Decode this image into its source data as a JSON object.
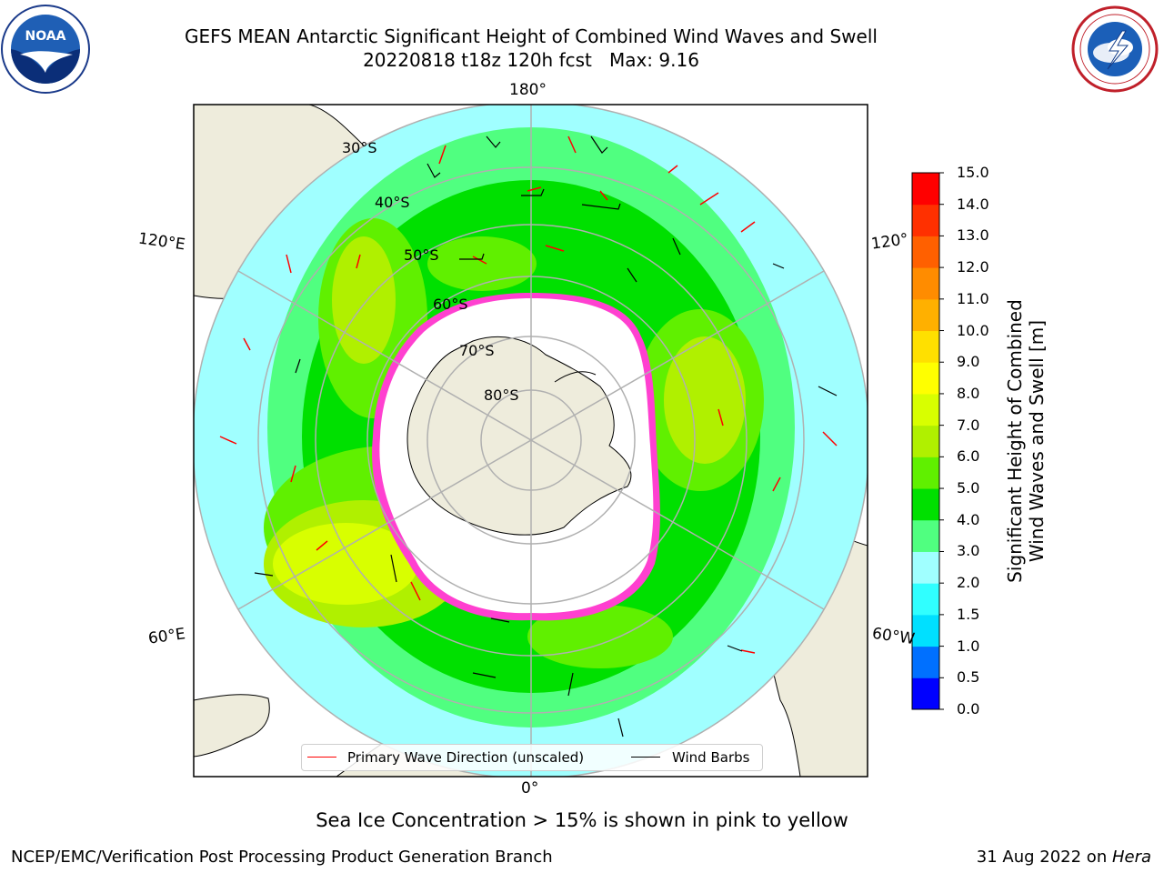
{
  "header": {
    "title_line1": "GEFS MEAN Antarctic Significant Height of Combined Wind Waves and Swell",
    "title_line2": "20220818 t18z 120h fcst   Max: 9.16"
  },
  "logos": {
    "left": "noaa-logo",
    "right": "national-weather-service-logo"
  },
  "map": {
    "projection": "south-polar-stereographic",
    "longitude_labels": {
      "top": "180°",
      "bottom": "0°",
      "upper_left": "120°E",
      "upper_right": "120°",
      "lower_left": "60°E",
      "lower_right": "60°W"
    },
    "latitude_labels": [
      "30°S",
      "40°S",
      "50°S",
      "60°S",
      "70°S",
      "80°S"
    ],
    "colors": {
      "land": "#eeecdc",
      "ice": "#ffffff",
      "grid": "#b0b0b0",
      "coast": "#000000",
      "wave_arrow": "#ff0000",
      "wind_barb": "#000000"
    }
  },
  "legend": {
    "items": [
      {
        "label": "Primary Wave Direction (unscaled)",
        "color": "#ff0000"
      },
      {
        "label": "Wind Barbs",
        "color": "#000000"
      }
    ]
  },
  "colorbar": {
    "label_line1": "Significant Height of Combined",
    "label_line2": "Wind Waves and Swell [m]",
    "ticks": [
      "0.0",
      "0.5",
      "1.0",
      "1.5",
      "2.0",
      "3.0",
      "4.0",
      "5.0",
      "6.0",
      "7.0",
      "8.0",
      "9.0",
      "10.0",
      "11.0",
      "12.0",
      "13.0",
      "14.0",
      "15.0"
    ],
    "colors": [
      "#0000ff",
      "#0070ff",
      "#00e0ff",
      "#30ffff",
      "#a0ffff",
      "#50ff80",
      "#00e000",
      "#60f000",
      "#b0f000",
      "#d8ff00",
      "#ffff00",
      "#ffe000",
      "#ffb000",
      "#ff8c00",
      "#ff6000",
      "#ff3000",
      "#ff0000"
    ]
  },
  "note": "Sea Ice Concentration > 15% is shown in pink to yellow",
  "footer": {
    "left": "NCEP/EMC/Verification Post Processing Product Generation Branch",
    "right_date": "31 Aug 2022 on ",
    "right_host": "Hera"
  }
}
